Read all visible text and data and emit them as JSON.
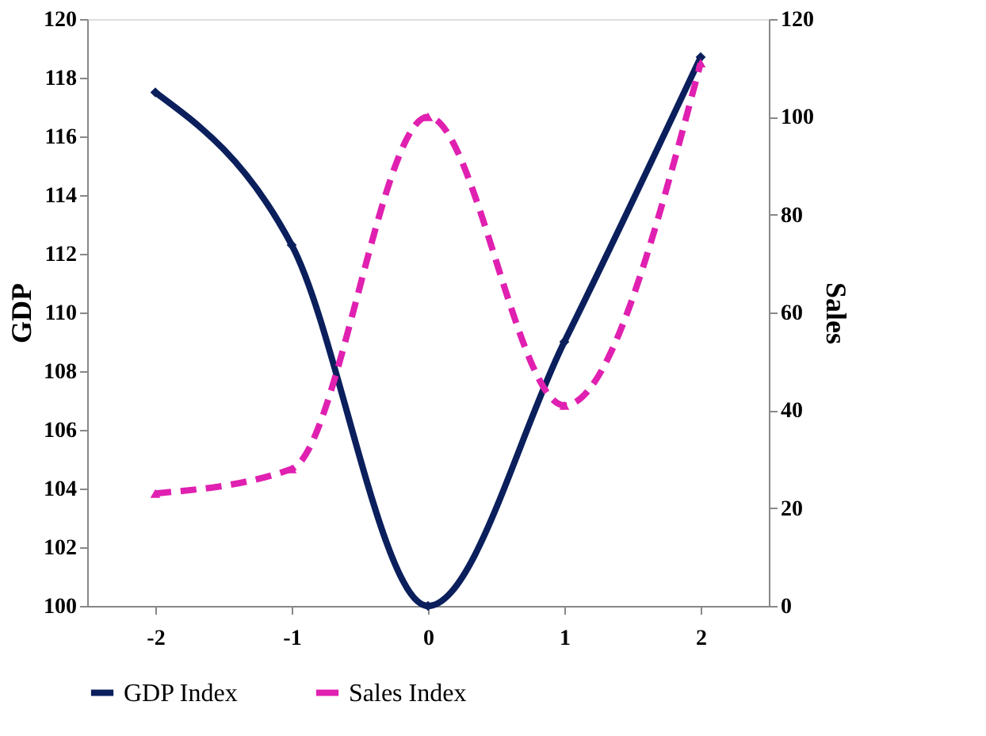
{
  "chart_data": {
    "type": "line",
    "ylabel": "GDP",
    "y2label": "Sales",
    "x": [
      -2,
      -1,
      0,
      1,
      2
    ],
    "series": [
      {
        "name": "GDP Index",
        "color": "#0a1f5c",
        "values": [
          117.5,
          112.3,
          100,
          109,
          118.7
        ],
        "marker": "diamond",
        "line_style": "solid"
      },
      {
        "name": "Sales Index",
        "color": "#e020b0",
        "values": [
          23,
          28,
          100,
          41,
          111
        ],
        "axis": "y2",
        "marker": "triangle",
        "line_style": "dashed"
      }
    ],
    "xlim": [
      -2.5,
      2.5
    ],
    "xticks": [
      -2,
      -1,
      0,
      1,
      2
    ],
    "ylim": [
      100,
      120
    ],
    "yticks": [
      100,
      102,
      104,
      106,
      108,
      110,
      112,
      114,
      116,
      118,
      120
    ],
    "y2lim": [
      0,
      120
    ],
    "y2ticks": [
      0,
      20,
      40,
      60,
      80,
      100,
      120
    ],
    "grid": false,
    "legend": "bottom"
  }
}
